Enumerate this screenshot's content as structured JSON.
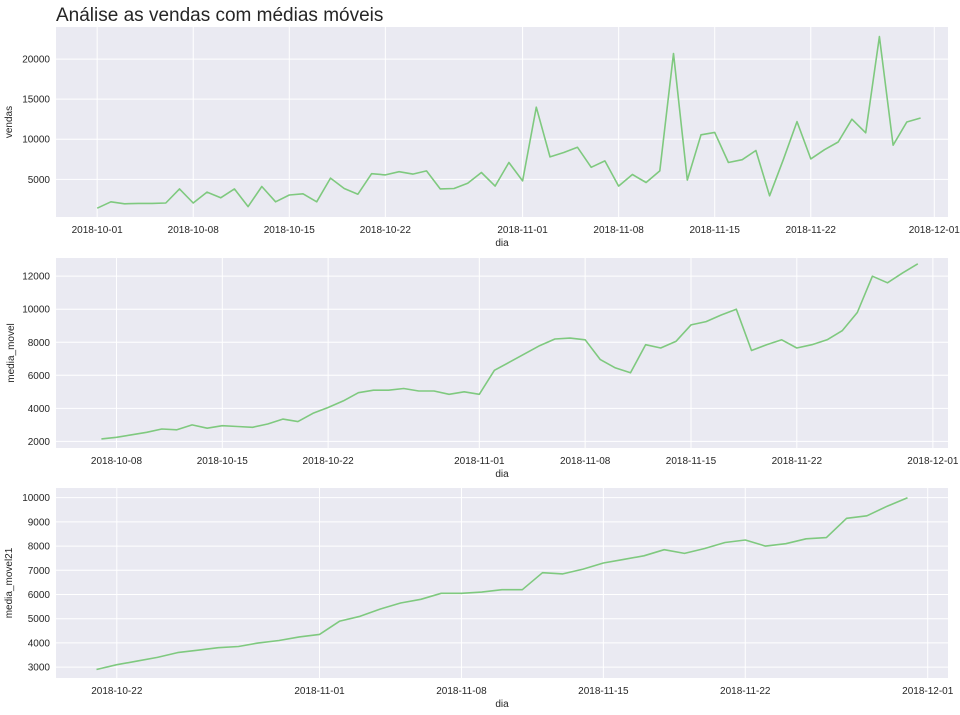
{
  "figure_title": "Análise as vendas com médias móveis",
  "colors": {
    "background": "#eaeaf2",
    "grid": "#ffffff",
    "line": "#7fc97f",
    "text": "#262626"
  },
  "chart_data": [
    {
      "type": "line",
      "xlabel": "dia",
      "ylabel": "vendas",
      "xlim": [
        "2018-09-28",
        "2018-12-02"
      ],
      "ylim": [
        300,
        24000
      ],
      "x_ticks": [
        "2018-10-01",
        "2018-10-08",
        "2018-10-15",
        "2018-10-22",
        "2018-11-01",
        "2018-11-08",
        "2018-11-15",
        "2018-11-22",
        "2018-12-01"
      ],
      "y_ticks": [
        5000,
        10000,
        15000,
        20000
      ],
      "start_date": "2018-10-01",
      "values": [
        1400,
        2200,
        1950,
        2000,
        2000,
        2050,
        3800,
        2050,
        3400,
        2700,
        3800,
        1600,
        4100,
        2200,
        3050,
        3200,
        2200,
        5150,
        3850,
        3150,
        5700,
        5550,
        5950,
        5650,
        6050,
        3800,
        3850,
        4500,
        5850,
        4150,
        7100,
        4800,
        14000,
        7800,
        8350,
        9000,
        6500,
        7300,
        4150,
        5600,
        4600,
        6050,
        20700,
        4900,
        10550,
        10850,
        7100,
        7450,
        8600,
        2950,
        7450,
        12200,
        7550,
        8700,
        9650,
        12500,
        10800,
        22800,
        9250,
        12150,
        12650
      ]
    },
    {
      "type": "line",
      "xlabel": "dia",
      "ylabel": "media_movel",
      "xlim": [
        "2018-10-04",
        "2018-12-02"
      ],
      "ylim": [
        1600,
        13100
      ],
      "x_ticks": [
        "2018-10-08",
        "2018-10-15",
        "2018-10-22",
        "2018-11-01",
        "2018-11-08",
        "2018-11-15",
        "2018-11-22",
        "2018-12-01"
      ],
      "y_ticks": [
        2000,
        4000,
        6000,
        8000,
        10000,
        12000
      ],
      "start_date": "2018-10-07",
      "values": [
        2150,
        2250,
        2400,
        2550,
        2750,
        2700,
        3000,
        2800,
        2950,
        2900,
        2850,
        3050,
        3350,
        3200,
        3700,
        4050,
        4450,
        4950,
        5100,
        5100,
        5200,
        5050,
        5050,
        4850,
        5000,
        4850,
        6300,
        6800,
        7300,
        7800,
        8200,
        8250,
        8150,
        6950,
        6450,
        6150,
        7850,
        7650,
        8050,
        9050,
        9250,
        9650,
        10000,
        7500,
        7850,
        8150,
        7650,
        7850,
        8150,
        8700,
        9800,
        12000,
        11600,
        12200,
        12750
      ]
    },
    {
      "type": "line",
      "xlabel": "dia",
      "ylabel": "media_movel21",
      "xlim": [
        "2018-10-19",
        "2018-12-02"
      ],
      "ylim": [
        2550,
        10400
      ],
      "x_ticks": [
        "2018-10-22",
        "2018-11-01",
        "2018-11-08",
        "2018-11-15",
        "2018-11-22",
        "2018-12-01"
      ],
      "y_ticks": [
        3000,
        4000,
        5000,
        6000,
        7000,
        8000,
        9000,
        10000
      ],
      "start_date": "2018-10-21",
      "values": [
        2900,
        3100,
        3250,
        3400,
        3600,
        3700,
        3800,
        3850,
        4000,
        4100,
        4250,
        4350,
        4900,
        5100,
        5400,
        5650,
        5800,
        6050,
        6050,
        6100,
        6200,
        6200,
        6900,
        6850,
        7050,
        7300,
        7450,
        7600,
        7850,
        7700,
        7900,
        8150,
        8250,
        8000,
        8100,
        8300,
        8350,
        9150,
        9250,
        9650,
        10000
      ]
    }
  ]
}
